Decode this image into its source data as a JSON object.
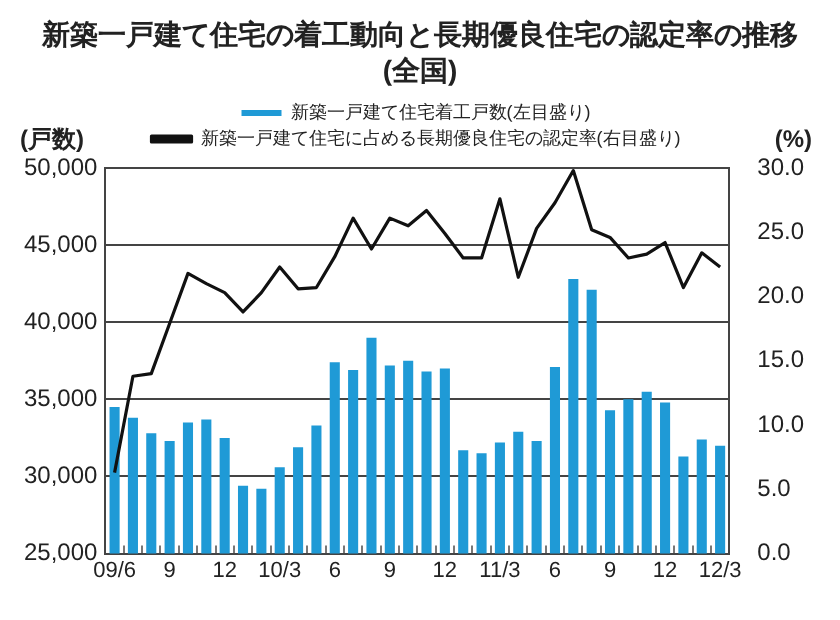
{
  "chart_data": {
    "type": "bar",
    "title": "新築一戸建て住宅の着工動向と長期優良住宅の認定率の推移\n(全国)",
    "ylabel": "(戸数)",
    "y2label": "(%)",
    "categories": [
      "09/6",
      null,
      null,
      "9",
      null,
      null,
      "12",
      null,
      null,
      "10/3",
      null,
      null,
      "6",
      null,
      null,
      "9",
      null,
      null,
      "12",
      null,
      null,
      "11/3",
      null,
      null,
      "6",
      null,
      null,
      "9",
      null,
      null,
      "12",
      null,
      null,
      "12/3"
    ],
    "series": [
      {
        "name": "新築一戸建て住宅着工戸数(左目盛り)",
        "color": "#1f9ad6",
        "values": [
          34500,
          33800,
          32800,
          32300,
          33500,
          33700,
          32500,
          29400,
          29200,
          30600,
          31900,
          33300,
          37400,
          36900,
          39000,
          37200,
          37500,
          36800,
          37000,
          31700,
          31500,
          32200,
          32900,
          32300,
          37100,
          42800,
          42100,
          34300,
          35000,
          35500,
          34800,
          31300,
          32400,
          32000
        ]
      },
      {
        "name": "新築一戸建て住宅に占める長期優良住宅の認定率(右目盛り)",
        "type": "line",
        "axis": "y2",
        "color": "#111111",
        "values": [
          6.3,
          13.8,
          14.0,
          17.9,
          21.8,
          21.0,
          20.3,
          18.8,
          20.3,
          22.3,
          20.6,
          20.7,
          23.1,
          26.1,
          23.7,
          26.1,
          25.5,
          26.7,
          24.9,
          23.0,
          23.0,
          27.6,
          21.5,
          25.3,
          27.3,
          29.8,
          25.2,
          24.6,
          23.0,
          23.3,
          24.2,
          20.7,
          23.4,
          22.3
        ]
      }
    ],
    "ylim": [
      25000,
      50000
    ],
    "yticks": [
      {
        "value": 25000,
        "label": "25,000"
      },
      {
        "value": 30000,
        "label": "30,000"
      },
      {
        "value": 35000,
        "label": "35,000"
      },
      {
        "value": 40000,
        "label": "40,000"
      },
      {
        "value": 45000,
        "label": "45,000"
      },
      {
        "value": 50000,
        "label": "50,000"
      }
    ],
    "y2lim": [
      0,
      30
    ],
    "y2ticks": [
      {
        "value": 0,
        "label": "0.0"
      },
      {
        "value": 5,
        "label": "5.0"
      },
      {
        "value": 10,
        "label": "10.0"
      },
      {
        "value": 15,
        "label": "15.0"
      },
      {
        "value": 20,
        "label": "20.0"
      },
      {
        "value": 25,
        "label": "25.0"
      },
      {
        "value": 30,
        "label": "30.0"
      }
    ],
    "grid": "y",
    "legend": "top",
    "marker": "none",
    "line_style": "solid"
  }
}
